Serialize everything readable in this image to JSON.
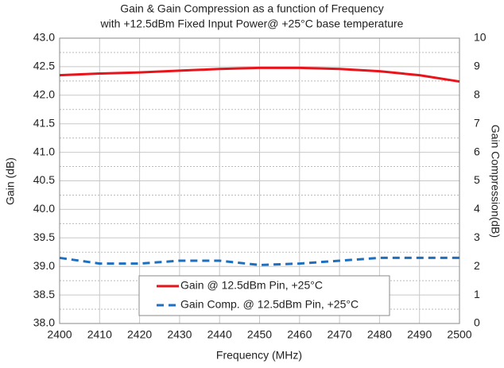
{
  "chart_data": {
    "type": "line",
    "title": [
      "Gain & Gain Compression as a function of Frequency",
      "with +12.5dBm Fixed Input Power@ +25°C base temperature"
    ],
    "xlabel": "Frequency (MHz)",
    "ylabel": "Gain (dB)",
    "y2label": "Gain Compression(dB)",
    "x": [
      2400,
      2410,
      2420,
      2430,
      2440,
      2450,
      2460,
      2470,
      2480,
      2490,
      2500
    ],
    "series": [
      {
        "name": "Gain @ 12.5dBm Pin, +25°C",
        "color": "#e8141b",
        "dash": false,
        "values": [
          42.35,
          42.38,
          42.4,
          42.43,
          42.46,
          42.48,
          42.48,
          42.46,
          42.42,
          42.35,
          42.24
        ]
      },
      {
        "name": "Gain Comp. @ 12.5dBm Pin, +25°C",
        "color": "#1f6fbf",
        "dash": true,
        "axis": "y2",
        "values": [
          2.3,
          2.1,
          2.1,
          2.2,
          2.2,
          2.05,
          2.1,
          2.2,
          2.3,
          2.3,
          2.3
        ]
      }
    ],
    "xlim": [
      2400,
      2500
    ],
    "xticks": [
      2400,
      2410,
      2420,
      2430,
      2440,
      2450,
      2460,
      2470,
      2480,
      2490,
      2500
    ],
    "ylim": [
      38,
      43
    ],
    "yticks": [
      {
        "value": 38,
        "label": "38.0"
      },
      {
        "value": 38.5,
        "label": "38.5"
      },
      {
        "value": 39,
        "label": "39.0"
      },
      {
        "value": 39.5,
        "label": "39.5"
      },
      {
        "value": 40,
        "label": "40.0"
      },
      {
        "value": 40.5,
        "label": "40.5"
      },
      {
        "value": 41,
        "label": "41.0"
      },
      {
        "value": 41.5,
        "label": "41.5"
      },
      {
        "value": 42,
        "label": "42.0"
      },
      {
        "value": 42.5,
        "label": "42.5"
      },
      {
        "value": 43,
        "label": "43.0"
      }
    ],
    "y2lim": [
      0,
      10
    ],
    "y2ticks": [
      0,
      1,
      2,
      3,
      4,
      5,
      6,
      7,
      8,
      9,
      10
    ],
    "grid": true
  }
}
